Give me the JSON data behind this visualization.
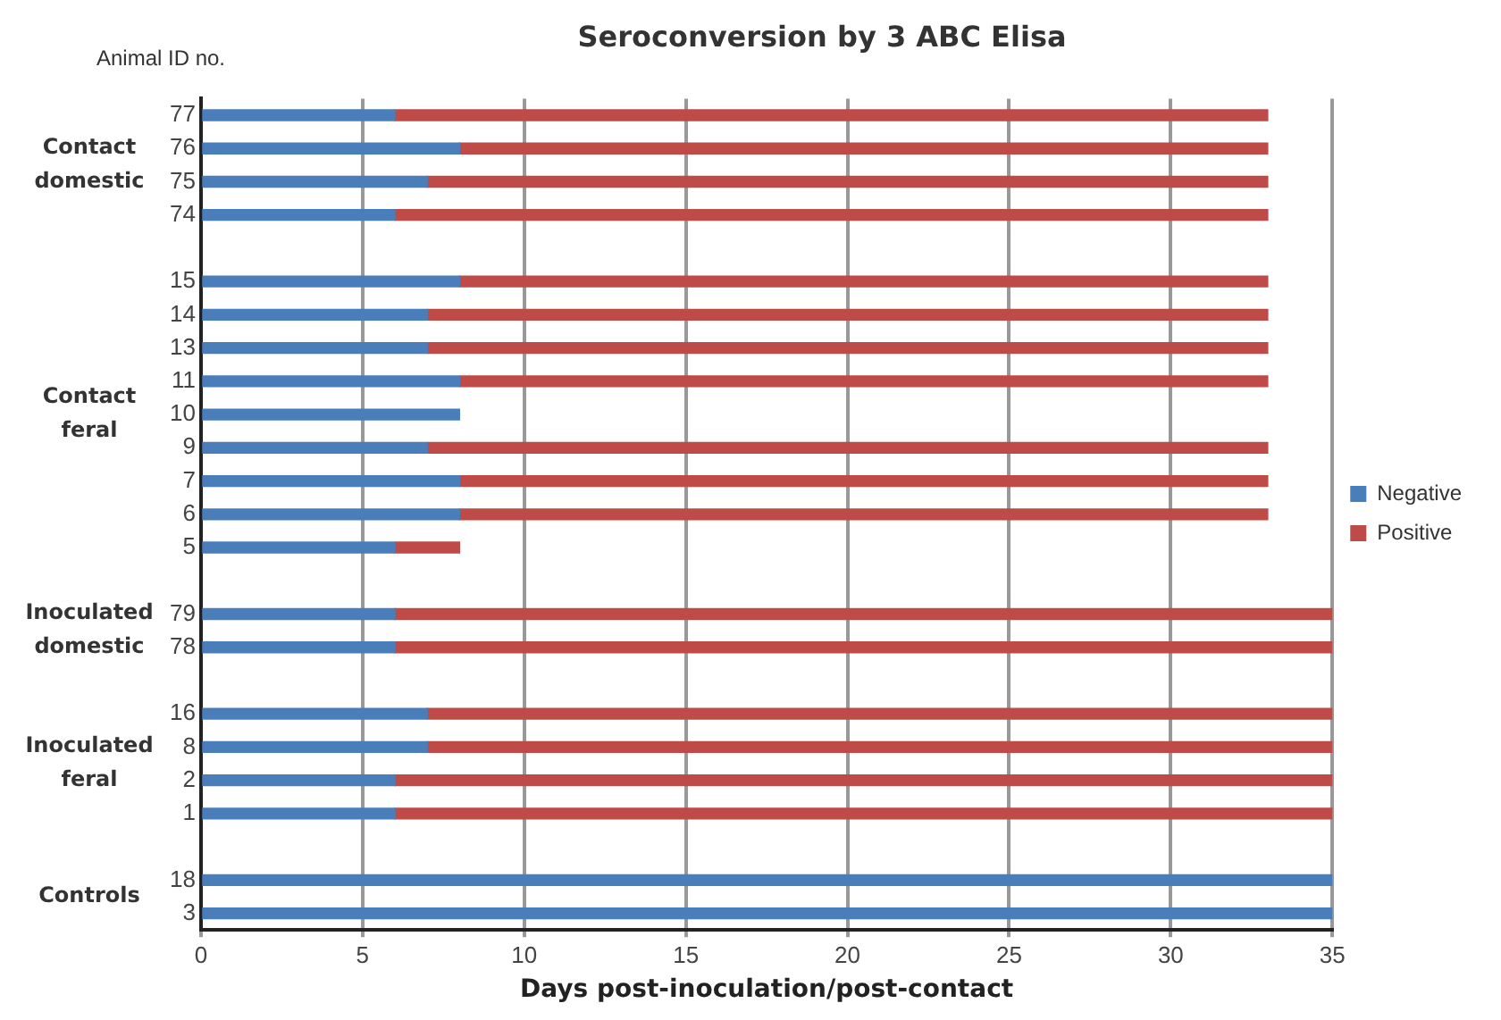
{
  "chart_data": {
    "type": "bar",
    "orientation": "horizontal",
    "stacked": true,
    "title": "Seroconversion by 3 ABC Elisa",
    "xlabel": "Days post-inoculation/post-contact",
    "annotations": [
      "Animal ID no.",
      "Contact domestic",
      "Contact feral",
      "Inoculated domestic",
      "Inoculated feral",
      "Controls"
    ],
    "categories": [
      "77",
      "76",
      "75",
      "74",
      null,
      "15",
      "14",
      "13",
      "11",
      "10",
      "9",
      "7",
      "6",
      "5",
      null,
      "79",
      "78",
      null,
      "16",
      "8",
      "2",
      "1",
      null,
      "18",
      "3"
    ],
    "series": [
      {
        "name": "Negative",
        "color": "#4a7ebb",
        "values": [
          6,
          8,
          7,
          6,
          null,
          8,
          7,
          7,
          8,
          8,
          7,
          8,
          8,
          6,
          null,
          6,
          6,
          null,
          7,
          7,
          6,
          6,
          null,
          35,
          35
        ]
      },
      {
        "name": "Positive",
        "color": "#be4b48",
        "values": [
          27,
          25,
          26,
          27,
          null,
          25,
          26,
          26,
          25,
          null,
          26,
          25,
          25,
          2,
          null,
          29,
          29,
          null,
          28,
          28,
          29,
          29,
          null,
          null,
          null
        ]
      }
    ],
    "xlim": [
      0,
      35
    ],
    "xticks": [
      0,
      5,
      10,
      15,
      20,
      25,
      30,
      35
    ],
    "grid": "x",
    "legend": "right"
  }
}
